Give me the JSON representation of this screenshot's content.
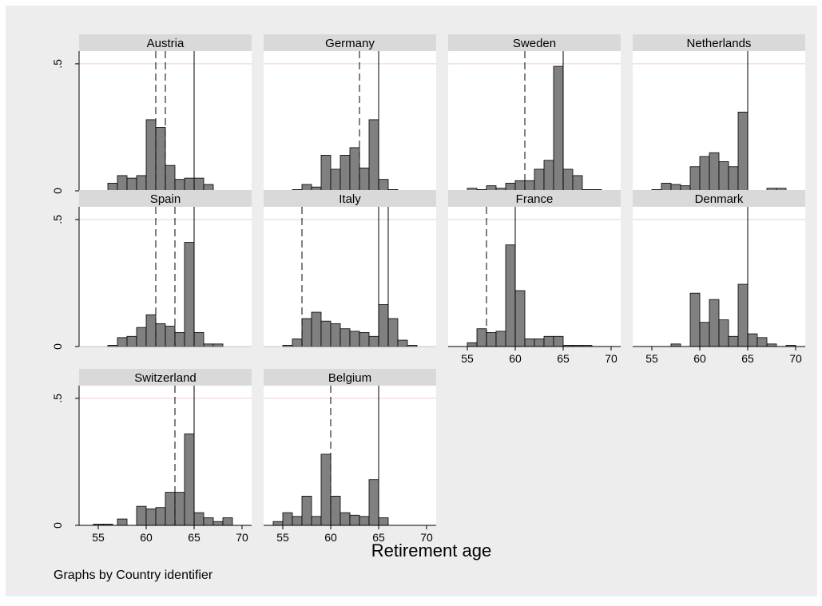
{
  "figure": {
    "xlabel": "Retirement age",
    "note": "Graphs by Country identifier"
  },
  "chart_data": {
    "type": "bar",
    "subtype": "histogram-by-panel",
    "xlim": [
      53,
      71
    ],
    "ylim": [
      0,
      0.55
    ],
    "xticks": [
      55,
      60,
      65,
      70
    ],
    "xtick_labels": [
      "55",
      "60",
      "65",
      "70"
    ],
    "yticks": [
      0,
      0.5
    ],
    "ytick_labels": [
      "0",
      ".5"
    ],
    "bin_width": 1,
    "colors": {
      "bar": "#808080",
      "outline": "#000000",
      "strip": "#d9d9d9",
      "plot_bg": "#ffffff",
      "outer_bg": "#ededed",
      "grid": "#f0dfe8"
    },
    "panels": [
      {
        "name": "Austria",
        "bins": [
          [
            56,
            0.03
          ],
          [
            57,
            0.06
          ],
          [
            58,
            0.05
          ],
          [
            59,
            0.06
          ],
          [
            60,
            0.28
          ],
          [
            61,
            0.25
          ],
          [
            62,
            0.1
          ],
          [
            63,
            0.045
          ],
          [
            64,
            0.05
          ],
          [
            65,
            0.05
          ],
          [
            66,
            0.025
          ]
        ],
        "dashed_lines": [
          61,
          62
        ],
        "solid_lines": [
          65
        ]
      },
      {
        "name": "Germany",
        "bins": [
          [
            56,
            0.005
          ],
          [
            57,
            0.025
          ],
          [
            58,
            0.015
          ],
          [
            59,
            0.14
          ],
          [
            60,
            0.085
          ],
          [
            61,
            0.14
          ],
          [
            62,
            0.17
          ],
          [
            63,
            0.09
          ],
          [
            64,
            0.28
          ],
          [
            65,
            0.045
          ],
          [
            66,
            0.005
          ]
        ],
        "dashed_lines": [
          63
        ],
        "solid_lines": [
          65
        ]
      },
      {
        "name": "Sweden",
        "bins": [
          [
            55,
            0.01
          ],
          [
            56,
            0.005
          ],
          [
            57,
            0.02
          ],
          [
            58,
            0.01
          ],
          [
            59,
            0.03
          ],
          [
            60,
            0.04
          ],
          [
            61,
            0.04
          ],
          [
            62,
            0.085
          ],
          [
            63,
            0.12
          ],
          [
            64,
            0.49
          ],
          [
            65,
            0.085
          ],
          [
            66,
            0.06
          ],
          [
            67,
            0.005
          ],
          [
            68,
            0.005
          ]
        ],
        "dashed_lines": [
          61
        ],
        "solid_lines": [
          65
        ]
      },
      {
        "name": "Netherlands",
        "bins": [
          [
            55,
            0.005
          ],
          [
            56,
            0.03
          ],
          [
            57,
            0.025
          ],
          [
            58,
            0.02
          ],
          [
            59,
            0.095
          ],
          [
            60,
            0.135
          ],
          [
            61,
            0.15
          ],
          [
            62,
            0.115
          ],
          [
            63,
            0.095
          ],
          [
            64,
            0.31
          ],
          [
            67,
            0.01
          ],
          [
            68,
            0.01
          ]
        ],
        "dashed_lines": [],
        "solid_lines": [
          65
        ]
      },
      {
        "name": "Spain",
        "bins": [
          [
            56,
            0.005
          ],
          [
            57,
            0.035
          ],
          [
            58,
            0.04
          ],
          [
            59,
            0.075
          ],
          [
            60,
            0.125
          ],
          [
            61,
            0.09
          ],
          [
            62,
            0.08
          ],
          [
            63,
            0.055
          ],
          [
            64,
            0.41
          ],
          [
            65,
            0.055
          ],
          [
            66,
            0.01
          ],
          [
            67,
            0.01
          ]
        ],
        "dashed_lines": [
          61,
          63
        ],
        "solid_lines": [
          65
        ]
      },
      {
        "name": "Italy",
        "bins": [
          [
            55,
            0.005
          ],
          [
            56,
            0.03
          ],
          [
            57,
            0.11
          ],
          [
            58,
            0.135
          ],
          [
            59,
            0.1
          ],
          [
            60,
            0.09
          ],
          [
            61,
            0.07
          ],
          [
            62,
            0.06
          ],
          [
            63,
            0.055
          ],
          [
            64,
            0.04
          ],
          [
            65,
            0.165
          ],
          [
            66,
            0.11
          ],
          [
            67,
            0.025
          ],
          [
            68,
            0.005
          ]
        ],
        "dashed_lines": [
          57
        ],
        "solid_lines": [
          65,
          66
        ]
      },
      {
        "name": "France",
        "bins": [
          [
            55,
            0.015
          ],
          [
            56,
            0.07
          ],
          [
            57,
            0.055
          ],
          [
            58,
            0.06
          ],
          [
            59,
            0.4
          ],
          [
            60,
            0.22
          ],
          [
            61,
            0.03
          ],
          [
            62,
            0.03
          ],
          [
            63,
            0.04
          ],
          [
            64,
            0.04
          ],
          [
            65,
            0.005
          ],
          [
            66,
            0.005
          ],
          [
            67,
            0.002
          ]
        ],
        "dashed_lines": [
          57
        ],
        "solid_lines": [
          60
        ]
      },
      {
        "name": "Denmark",
        "bins": [
          [
            57,
            0.01
          ],
          [
            59,
            0.21
          ],
          [
            60,
            0.095
          ],
          [
            61,
            0.185
          ],
          [
            62,
            0.105
          ],
          [
            63,
            0.04
          ],
          [
            64,
            0.245
          ],
          [
            65,
            0.05
          ],
          [
            66,
            0.035
          ],
          [
            67,
            0.01
          ],
          [
            69,
            0.003
          ]
        ],
        "dashed_lines": [],
        "solid_lines": [
          65
        ]
      },
      {
        "name": "Switzerland",
        "bins": [
          [
            54.5,
            0.005
          ],
          [
            55.5,
            0.005
          ],
          [
            57,
            0.025
          ],
          [
            59,
            0.075
          ],
          [
            60,
            0.065
          ],
          [
            61,
            0.07
          ],
          [
            62,
            0.13
          ],
          [
            63,
            0.13
          ],
          [
            64,
            0.36
          ],
          [
            65,
            0.05
          ],
          [
            66,
            0.03
          ],
          [
            67,
            0.015
          ],
          [
            68,
            0.03
          ]
        ],
        "dashed_lines": [
          63
        ],
        "solid_lines": [
          65
        ]
      },
      {
        "name": "Belgium",
        "bins": [
          [
            54,
            0.015
          ],
          [
            55,
            0.05
          ],
          [
            56,
            0.035
          ],
          [
            57,
            0.115
          ],
          [
            58,
            0.035
          ],
          [
            59,
            0.28
          ],
          [
            60,
            0.115
          ],
          [
            61,
            0.05
          ],
          [
            62,
            0.04
          ],
          [
            63,
            0.035
          ],
          [
            64,
            0.18
          ],
          [
            65,
            0.03
          ]
        ],
        "dashed_lines": [
          60
        ],
        "solid_lines": [
          65
        ]
      }
    ]
  }
}
